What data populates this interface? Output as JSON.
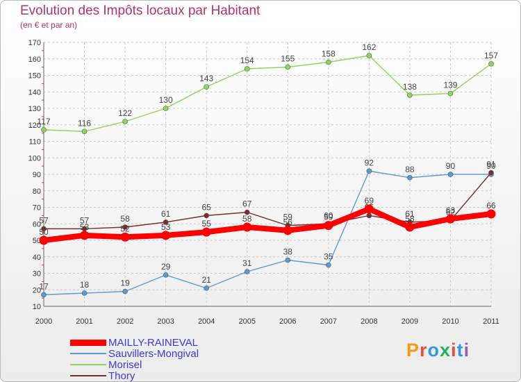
{
  "header": {
    "title": "Evolution des Impôts locaux par Habitant",
    "subtitle": "(en € et par an)"
  },
  "logo": {
    "letters": [
      "P",
      "r",
      "o",
      "x",
      "i",
      "t",
      "i"
    ],
    "colors": [
      "#f39c12",
      "#e74c3c",
      "#3498db",
      "#27ae60",
      "#e74c3c",
      "#3498db",
      "#9b59b6"
    ]
  },
  "chart_data": {
    "type": "line",
    "x": [
      2000,
      2001,
      2002,
      2003,
      2004,
      2005,
      2006,
      2007,
      2008,
      2009,
      2010,
      2011
    ],
    "ylim": [
      10,
      170
    ],
    "yticks": [
      10,
      20,
      30,
      40,
      50,
      60,
      70,
      80,
      90,
      100,
      110,
      120,
      130,
      140,
      150,
      160,
      170
    ],
    "grid": true,
    "legend_position": "bottom-left",
    "series": [
      {
        "name": "MAILLY-RAINEVAL",
        "color": "#ff0000",
        "values": [
          50,
          53,
          52,
          53,
          55,
          58,
          56,
          59,
          69,
          58,
          63,
          66
        ],
        "labels": [
          "50",
          "53",
          "52",
          "53",
          "55",
          "58",
          "56",
          "59",
          "69",
          "58",
          "63",
          "66"
        ],
        "emphasis": true
      },
      {
        "name": "Sauvillers-Mongival",
        "color": "#5b9bd5",
        "values": [
          17,
          18,
          19,
          29,
          21,
          31,
          38,
          35,
          92,
          88,
          90,
          90
        ],
        "labels": [
          "17",
          "18",
          "19",
          "29",
          "21",
          "31",
          "38",
          "35",
          "92",
          "88",
          "90",
          "90"
        ]
      },
      {
        "name": "Morisel",
        "color": "#8ed65a",
        "values": [
          117,
          116,
          122,
          130,
          143,
          154,
          155,
          158,
          162,
          138,
          139,
          157
        ],
        "labels": [
          "117",
          "116",
          "122",
          "130",
          "143",
          "154",
          "155",
          "158",
          "162",
          "138",
          "139",
          "157"
        ]
      },
      {
        "name": "Thory",
        "color": "#7b2c2c",
        "values": [
          57,
          57,
          58,
          61,
          65,
          67,
          59,
          60,
          65,
          61,
          62,
          91
        ],
        "labels": [
          "57",
          "57",
          "58",
          "61",
          "65",
          "67",
          "59",
          "60",
          "65",
          "61",
          "62",
          "91"
        ]
      }
    ]
  }
}
